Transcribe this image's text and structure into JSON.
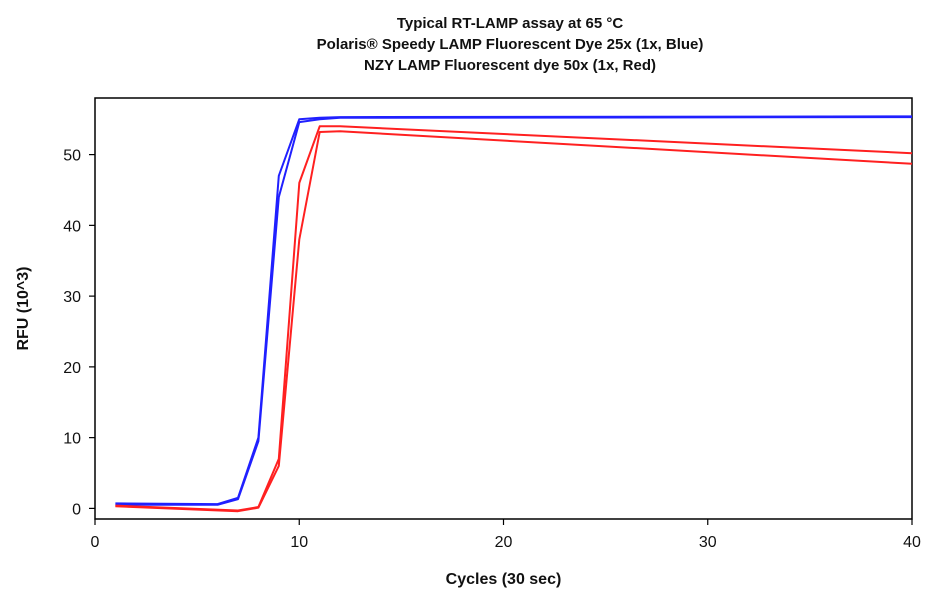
{
  "chart_data": {
    "type": "line",
    "title": [
      "Typical RT-LAMP assay at 65 °C",
      "Polaris® Speedy LAMP Fluorescent Dye 25x (1x, Blue)",
      "NZY LAMP Fluorescent dye 50x (1x, Red)"
    ],
    "xlabel": "Cycles (30 sec)",
    "ylabel": "RFU (10^3)",
    "xlim": [
      0,
      40
    ],
    "ylim": [
      -1.5,
      58
    ],
    "xticks": [
      0,
      10,
      20,
      30,
      40
    ],
    "yticks": [
      0,
      10,
      20,
      30,
      40,
      50
    ],
    "grid": false,
    "legend": "none",
    "series": [
      {
        "color": "#2020ff",
        "x": [
          1,
          6,
          7,
          8,
          9,
          10,
          11,
          12,
          40
        ],
        "y": [
          0.7,
          0.6,
          1.5,
          10,
          47,
          55,
          55.2,
          55.3,
          55.4
        ]
      },
      {
        "color": "#2020ff",
        "x": [
          1,
          6,
          7,
          8,
          9,
          10,
          11,
          12,
          40
        ],
        "y": [
          0.5,
          0.5,
          1.3,
          9.5,
          44,
          54.6,
          55,
          55.2,
          55.3
        ]
      },
      {
        "color": "#ff2020",
        "x": [
          1,
          7,
          8,
          9,
          10,
          11,
          12,
          40
        ],
        "y": [
          0.4,
          -0.3,
          0.2,
          7,
          46,
          54,
          54,
          50.2
        ]
      },
      {
        "color": "#ff2020",
        "x": [
          1,
          7,
          8,
          9,
          10,
          11,
          12,
          40
        ],
        "y": [
          0.3,
          -0.4,
          0.1,
          6,
          38,
          53.2,
          53.3,
          48.7
        ]
      }
    ]
  }
}
